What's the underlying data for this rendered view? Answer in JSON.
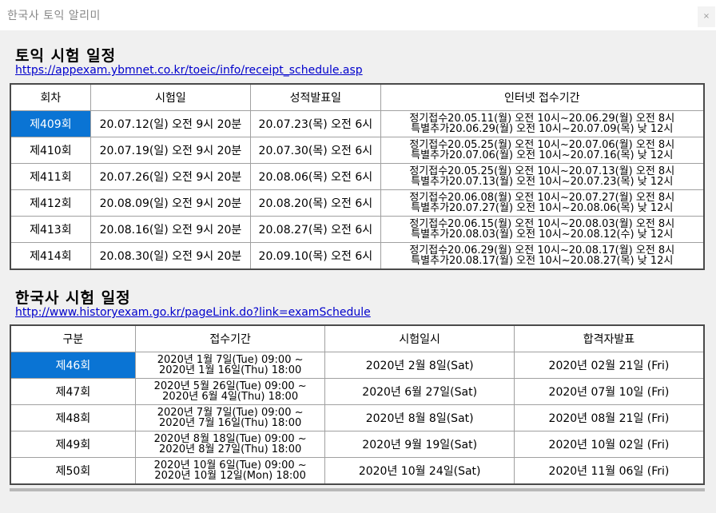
{
  "window": {
    "title": "한국사 토익 알리미",
    "close_label": "×"
  },
  "toeic": {
    "heading": "토익 시험 일정",
    "link": "https://appexam.ybmnet.co.kr/toeic/info/receipt_schedule.asp",
    "headers": [
      "회차",
      "시험일",
      "성적발표일",
      "인터넷 접수기간"
    ],
    "rows": [
      {
        "round": "제409회",
        "exam": "20.07.12(일) 오전 9시 20분",
        "result": "20.07.23(목) 오전 6시",
        "period1": "정기접수20.05.11(월) 오전 10시~20.06.29(월) 오전 8시",
        "period2": "특별추가20.06.29(월) 오전 10시~20.07.09(목) 낮 12시"
      },
      {
        "round": "제410회",
        "exam": "20.07.19(일) 오전 9시 20분",
        "result": "20.07.30(목) 오전 6시",
        "period1": "정기접수20.05.25(월) 오전 10시~20.07.06(월) 오전 8시",
        "period2": "특별추가20.07.06(월) 오전 10시~20.07.16(목) 낮 12시"
      },
      {
        "round": "제411회",
        "exam": "20.07.26(일) 오전 9시 20분",
        "result": "20.08.06(목) 오전 6시",
        "period1": "정기접수20.05.25(월) 오전 10시~20.07.13(월) 오전 8시",
        "period2": "특별추가20.07.13(월) 오전 10시~20.07.23(목) 낮 12시"
      },
      {
        "round": "제412회",
        "exam": "20.08.09(일) 오전 9시 20분",
        "result": "20.08.20(목) 오전 6시",
        "period1": "정기접수20.06.08(월) 오전 10시~20.07.27(월) 오전 8시",
        "period2": "특별추가20.07.27(월) 오전 10시~20.08.06(목) 낮 12시"
      },
      {
        "round": "제413회",
        "exam": "20.08.16(일) 오전 9시 20분",
        "result": "20.08.27(목) 오전 6시",
        "period1": "정기접수20.06.15(월) 오전 10시~20.08.03(월) 오전 8시",
        "period2": "특별추가20.08.03(월) 오전 10시~20.08.12(수) 낮 12시"
      },
      {
        "round": "제414회",
        "exam": "20.08.30(일) 오전 9시 20분",
        "result": "20.09.10(목) 오전 6시",
        "period1": "정기접수20.06.29(월) 오전 10시~20.08.17(월) 오전 8시",
        "period2": "특별추가20.08.17(월) 오전 10시~20.08.27(목) 낮 12시"
      }
    ]
  },
  "history": {
    "heading": "한국사 시험 일정",
    "link": "http://www.historyexam.go.kr/pageLink.do?link=examSchedule",
    "headers": [
      "구분",
      "접수기간",
      "시험일시",
      "합격자발표"
    ],
    "rows": [
      {
        "round": "제46회",
        "period1": "2020년 1월 7일(Tue) 09:00 ~",
        "period2": "2020년 1월 16일(Thu) 18:00",
        "exam": "2020년 2월 8일(Sat)",
        "result": "2020년 02월 21일 (Fri)"
      },
      {
        "round": "제47회",
        "period1": "2020년 5월 26일(Tue) 09:00 ~",
        "period2": "2020년 6월 4일(Thu) 18:00",
        "exam": "2020년 6월 27일(Sat)",
        "result": "2020년 07월 10일 (Fri)"
      },
      {
        "round": "제48회",
        "period1": "2020년 7월 7일(Tue) 09:00 ~",
        "period2": "2020년 7월 16일(Thu) 18:00",
        "exam": "2020년 8월 8일(Sat)",
        "result": "2020년 08월 21일 (Fri)"
      },
      {
        "round": "제49회",
        "period1": "2020년 8월 18일(Tue) 09:00 ~",
        "period2": "2020년 8월 27일(Thu) 18:00",
        "exam": "2020년 9월 19일(Sat)",
        "result": "2020년 10월 02일 (Fri)"
      },
      {
        "round": "제50회",
        "period1": "2020년 10월 6일(Tue) 09:00 ~",
        "period2": "2020년 10월 12일(Mon) 18:00",
        "exam": "2020년 10월 24일(Sat)",
        "result": "2020년 11월 06일 (Fri)"
      }
    ]
  },
  "colors": {
    "selection": "#0a74d4",
    "link": "#0000cc"
  }
}
